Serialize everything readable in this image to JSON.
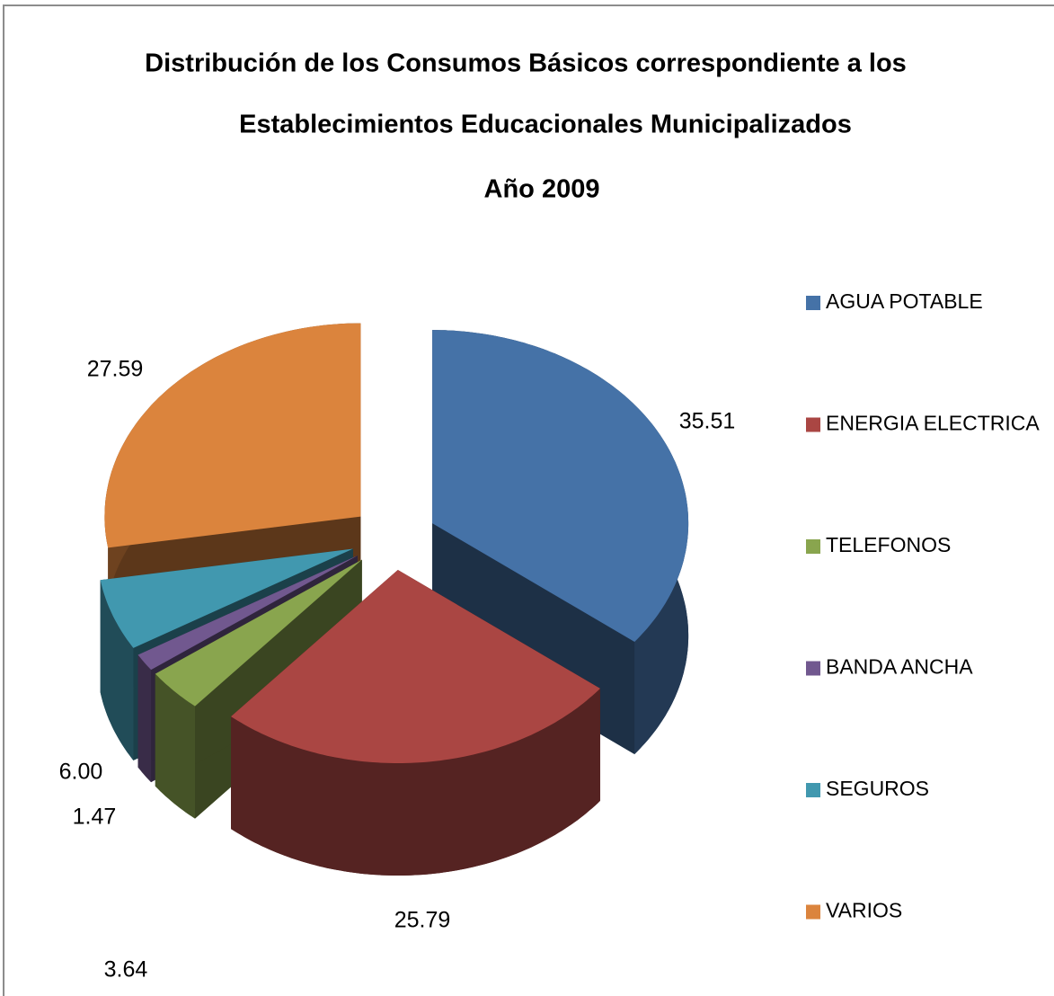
{
  "chart_data": {
    "type": "pie3d",
    "title": [
      "Distribución de los Consumos Básicos correspondiente a los",
      "Establecimientos Educacionales Municipalizados",
      "Año 2009"
    ],
    "categories": [
      "AGUA POTABLE",
      "ENERGIA ELECTRICA",
      "TELEFONOS",
      "BANDA ANCHA",
      "SEGUROS",
      "VARIOS"
    ],
    "values": [
      35.51,
      25.79,
      3.64,
      1.47,
      6.0,
      27.59
    ],
    "value_labels": [
      "35.51",
      "25.79",
      "3.64",
      "1.47",
      "6.00",
      "27.59"
    ],
    "colors": [
      "#4572a7",
      "#aa4643",
      "#89a54e",
      "#71588f",
      "#4198af",
      "#db843d"
    ],
    "legend": "right"
  }
}
